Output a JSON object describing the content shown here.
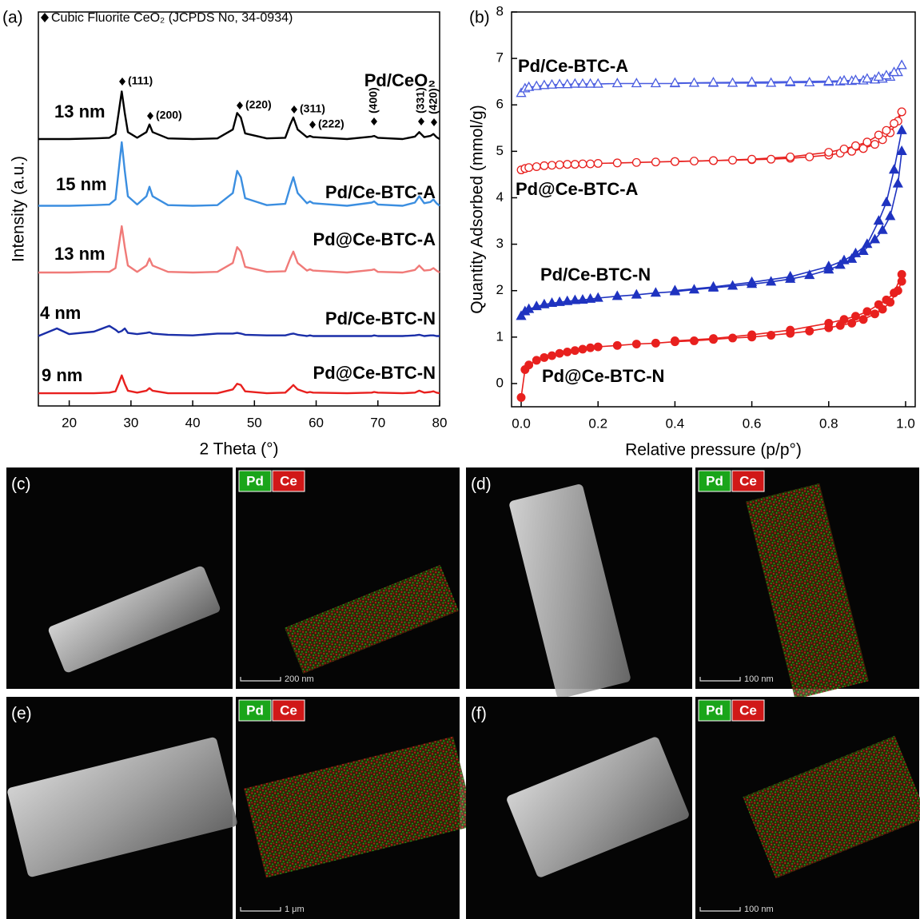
{
  "chart_data": [
    {
      "type": "line",
      "panel_label": "(a)",
      "note": "Cubic Fluorite CeO₂ (JCPDS No, 34-0934)",
      "xlabel": "2 Theta (°)",
      "ylabel": "Intensity (a.u.)",
      "annotations": [
        "(111)",
        "(200)",
        "(220)",
        "(311)",
        "(222)",
        "(400)",
        "(331)",
        "(420)"
      ],
      "xlim": [
        15,
        80
      ],
      "xticks": [
        20,
        30,
        40,
        50,
        60,
        70,
        80
      ],
      "ylim": [
        -0.2,
        6
      ],
      "x": [
        15,
        18,
        20,
        24,
        26.5,
        27.5,
        28,
        28.5,
        29,
        29.5,
        31,
        32.5,
        33,
        33.5,
        36,
        40,
        44,
        46.5,
        47.2,
        47.8,
        48.5,
        52,
        55,
        55.8,
        56.3,
        57,
        58.5,
        59,
        59.5,
        65,
        69,
        69.4,
        70,
        74,
        76,
        76.7,
        77.5,
        78.5,
        79,
        79.5,
        80
      ],
      "series": [
        {
          "name": "Pd/CeO₂",
          "size_label": "13 nm",
          "color": "#000000",
          "values": [
            4,
            4,
            4,
            4.01,
            4.02,
            4.08,
            4.41,
            4.75,
            4.41,
            4.11,
            4.02,
            4.11,
            4.23,
            4.11,
            4.01,
            4,
            4.01,
            4.15,
            4.41,
            4.34,
            4.09,
            4.01,
            4.02,
            4.23,
            4.34,
            4.15,
            4.03,
            4.05,
            4.03,
            4,
            4.04,
            4.05,
            4.02,
            4,
            4.04,
            4.11,
            4.03,
            4.05,
            4.08,
            4.03,
            4
          ]
        },
        {
          "name": "Pd/Ce-BTC-A",
          "size_label": "15 nm",
          "color": "#3b8ee0",
          "values": [
            2.95,
            2.95,
            2.95,
            2.96,
            2.97,
            3.05,
            3.5,
            3.95,
            3.5,
            3.1,
            2.97,
            3.1,
            3.25,
            3.1,
            2.96,
            2.95,
            2.96,
            3.15,
            3.5,
            3.4,
            3.07,
            2.96,
            2.98,
            3.25,
            3.4,
            3.15,
            2.99,
            3.02,
            2.99,
            2.95,
            3.0,
            3.02,
            2.97,
            2.95,
            3.0,
            3.1,
            2.99,
            3.01,
            3.05,
            2.99,
            2.95
          ]
        },
        {
          "name": "Pd@Ce-BTC-A",
          "size_label": "13 nm",
          "color": "#f07a78",
          "values": [
            1.9,
            1.9,
            1.9,
            1.91,
            1.91,
            1.97,
            2.3,
            2.63,
            2.3,
            2.01,
            1.91,
            2.01,
            2.12,
            2.01,
            1.91,
            1.9,
            1.91,
            2.05,
            2.3,
            2.23,
            1.99,
            1.91,
            1.92,
            2.12,
            2.23,
            2.05,
            1.93,
            1.95,
            1.93,
            1.9,
            1.94,
            1.95,
            1.91,
            1.9,
            1.94,
            2.01,
            1.93,
            1.94,
            1.97,
            1.93,
            1.9
          ]
        },
        {
          "name": "Pd/Ce-BTC-N",
          "size_label": "4 nm",
          "color": "#1a2ea8",
          "values": [
            0.9,
            1.02,
            0.93,
            0.97,
            1.06,
            1.0,
            0.96,
            0.98,
            1.02,
            0.95,
            0.93,
            0.95,
            0.96,
            0.94,
            0.92,
            0.91,
            0.94,
            0.94,
            0.95,
            0.94,
            0.92,
            0.91,
            0.91,
            0.93,
            0.94,
            0.92,
            0.9,
            0.91,
            0.9,
            0.9,
            0.9,
            0.91,
            0.9,
            0.9,
            0.91,
            0.92,
            0.9,
            0.91,
            0.91,
            0.9,
            0.9
          ]
        },
        {
          "name": "Pd@Ce-BTC-N",
          "size_label": "9 nm",
          "color": "#e8201e",
          "values": [
            0,
            0,
            0,
            0,
            0.01,
            0.03,
            0.15,
            0.28,
            0.15,
            0.04,
            0.01,
            0.04,
            0.08,
            0.04,
            0,
            0,
            0,
            0.06,
            0.15,
            0.13,
            0.03,
            0,
            0.01,
            0.08,
            0.13,
            0.06,
            0.01,
            0.02,
            0.01,
            0,
            0.01,
            0.02,
            0.01,
            0,
            0.01,
            0.04,
            0.01,
            0.02,
            0.03,
            0.01,
            0
          ]
        }
      ]
    },
    {
      "type": "line",
      "panel_label": "(b)",
      "xlabel": "Relative pressure (p/p°)",
      "ylabel": "Quantity Adsorbed (mmol/g)",
      "xlim": [
        -0.025,
        1.025
      ],
      "xticks": [
        {
          "value": 0,
          "label": "0.0"
        },
        0.2,
        0.4,
        0.6,
        0.8,
        {
          "value": 1,
          "label": "1.0"
        }
      ],
      "ylim": [
        -0.5,
        8
      ],
      "yticks": [
        0,
        1,
        2,
        3,
        4,
        5,
        6,
        7,
        8
      ],
      "x": [
        0,
        0.01,
        0.02,
        0.04,
        0.06,
        0.08,
        0.1,
        0.12,
        0.14,
        0.16,
        0.18,
        0.2,
        0.25,
        0.3,
        0.35,
        0.4,
        0.45,
        0.5,
        0.55,
        0.6,
        0.65,
        0.7,
        0.75,
        0.8,
        0.83,
        0.86,
        0.89,
        0.92,
        0.94,
        0.96,
        0.98,
        0.99
      ],
      "x_desorption": [
        0.99,
        0.97,
        0.95,
        0.93,
        0.9,
        0.87,
        0.84,
        0.8,
        0.7,
        0.6,
        0.5,
        0.4
      ],
      "series": [
        {
          "name": "Pd/Ce-BTC-A",
          "color": "#4a5de0",
          "marker": "triangle",
          "filled": false,
          "values": [
            6.25,
            6.35,
            6.38,
            6.4,
            6.42,
            6.43,
            6.44,
            6.44,
            6.45,
            6.45,
            6.45,
            6.45,
            6.46,
            6.46,
            6.46,
            6.46,
            6.47,
            6.47,
            6.47,
            6.47,
            6.47,
            6.48,
            6.48,
            6.49,
            6.5,
            6.51,
            6.52,
            6.54,
            6.56,
            6.6,
            6.7,
            6.85
          ],
          "desorption": [
            6.85,
            6.7,
            6.63,
            6.6,
            6.56,
            6.53,
            6.52,
            6.51,
            6.5,
            6.49,
            6.48,
            6.47
          ]
        },
        {
          "name": "Pd@Ce-BTC-A",
          "color": "#e8201e",
          "marker": "circle",
          "filled": false,
          "values": [
            4.6,
            4.63,
            4.65,
            4.67,
            4.69,
            4.7,
            4.71,
            4.72,
            4.72,
            4.73,
            4.73,
            4.74,
            4.75,
            4.76,
            4.77,
            4.78,
            4.79,
            4.8,
            4.81,
            4.82,
            4.83,
            4.85,
            4.88,
            4.92,
            4.96,
            5.0,
            5.06,
            5.15,
            5.25,
            5.4,
            5.65,
            5.85
          ],
          "desorption": [
            5.85,
            5.6,
            5.45,
            5.35,
            5.2,
            5.12,
            5.05,
            4.98,
            4.88,
            4.83,
            4.8,
            4.78
          ]
        },
        {
          "name": "Pd/Ce-BTC-N",
          "color": "#1f33c0",
          "marker": "triangle",
          "filled": true,
          "values": [
            1.45,
            1.55,
            1.6,
            1.66,
            1.7,
            1.73,
            1.75,
            1.77,
            1.79,
            1.8,
            1.82,
            1.84,
            1.88,
            1.91,
            1.95,
            1.98,
            2.02,
            2.06,
            2.1,
            2.14,
            2.19,
            2.25,
            2.33,
            2.45,
            2.55,
            2.68,
            2.85,
            3.1,
            3.3,
            3.6,
            4.3,
            5.0
          ],
          "desorption": [
            5.45,
            4.6,
            3.9,
            3.5,
            3.0,
            2.8,
            2.65,
            2.52,
            2.3,
            2.18,
            2.08,
            2.0
          ]
        },
        {
          "name": "Pd@Ce-BTC-N",
          "color": "#e8201e",
          "marker": "circle",
          "filled": true,
          "values": [
            -0.3,
            0.3,
            0.4,
            0.5,
            0.56,
            0.6,
            0.65,
            0.68,
            0.71,
            0.74,
            0.77,
            0.79,
            0.82,
            0.85,
            0.87,
            0.9,
            0.92,
            0.95,
            0.98,
            1.0,
            1.04,
            1.08,
            1.13,
            1.2,
            1.25,
            1.3,
            1.38,
            1.5,
            1.6,
            1.75,
            2.0,
            2.2
          ],
          "desorption": [
            2.35,
            1.95,
            1.8,
            1.7,
            1.55,
            1.45,
            1.38,
            1.3,
            1.15,
            1.05,
            0.97,
            0.92
          ]
        }
      ]
    }
  ],
  "panels": [
    {
      "label": "(c)",
      "legend": [
        "Pd",
        "Ce"
      ],
      "scale_bar": "200 nm"
    },
    {
      "label": "(d)",
      "legend": [
        "Pd",
        "Ce"
      ],
      "scale_bar": "100 nm"
    },
    {
      "label": "(e)",
      "legend": [
        "Pd",
        "Ce"
      ],
      "scale_bar": "1 μm"
    },
    {
      "label": "(f)",
      "legend": [
        "Pd",
        "Ce"
      ],
      "scale_bar": "100 nm"
    }
  ]
}
